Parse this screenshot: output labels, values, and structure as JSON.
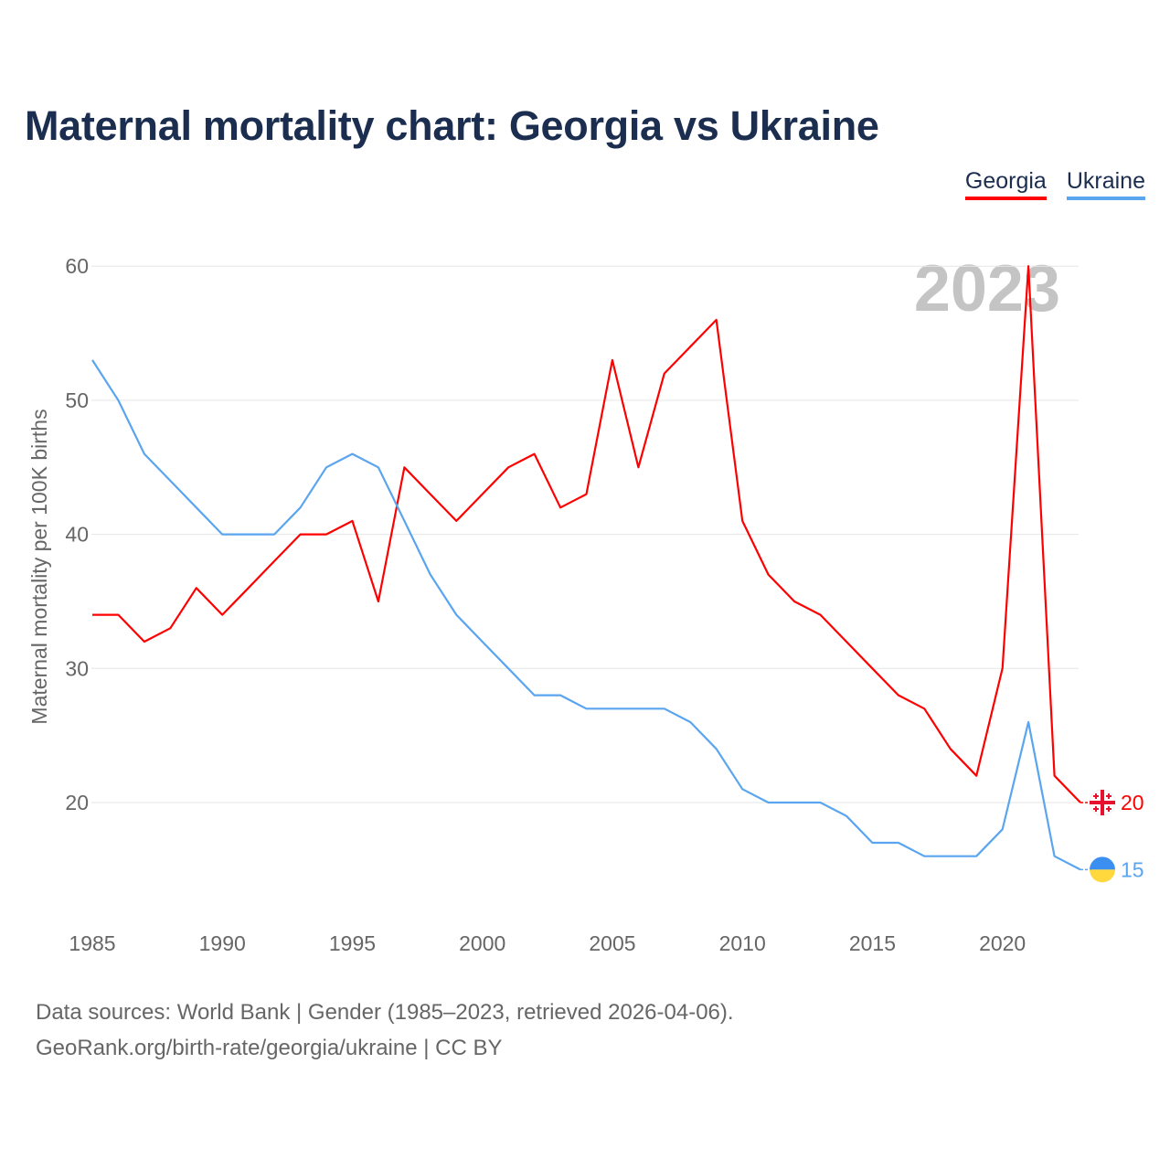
{
  "chart_data": {
    "type": "line",
    "title": "Maternal mortality chart: Georgia vs Ukraine",
    "ylabel": "Maternal mortality per 100K births",
    "xlabel": "",
    "year_watermark": "2023",
    "x": [
      1985,
      1986,
      1987,
      1988,
      1989,
      1990,
      1991,
      1992,
      1993,
      1994,
      1995,
      1996,
      1997,
      1998,
      1999,
      2000,
      2001,
      2002,
      2003,
      2004,
      2005,
      2006,
      2007,
      2008,
      2009,
      2010,
      2011,
      2012,
      2013,
      2014,
      2015,
      2016,
      2017,
      2018,
      2019,
      2020,
      2021,
      2022,
      2023
    ],
    "xlim": [
      1985,
      2023
    ],
    "ylim": [
      12,
      61
    ],
    "xticks": [
      "1985",
      "1990",
      "1995",
      "2000",
      "2005",
      "2010",
      "2015",
      "2020"
    ],
    "yticks": [
      "20",
      "30",
      "40",
      "50",
      "60"
    ],
    "grid": true,
    "legend_position": "top-right",
    "series": [
      {
        "name": "Georgia",
        "color": "#ff0000",
        "end_label": "20",
        "values": [
          34,
          34,
          32,
          33,
          36,
          34,
          36,
          38,
          40,
          40,
          41,
          35,
          45,
          43,
          41,
          43,
          45,
          46,
          42,
          43,
          53,
          45,
          52,
          54,
          56,
          41,
          37,
          35,
          34,
          32,
          30,
          28,
          27,
          24,
          22,
          30,
          60,
          22,
          20
        ]
      },
      {
        "name": "Ukraine",
        "color": "#5aa5f0",
        "end_label": "15",
        "values": [
          53,
          50,
          46,
          44,
          42,
          40,
          40,
          40,
          42,
          45,
          46,
          45,
          41,
          37,
          34,
          32,
          30,
          28,
          28,
          27,
          27,
          27,
          27,
          26,
          24,
          21,
          20,
          20,
          20,
          19,
          17,
          17,
          16,
          16,
          16,
          18,
          26,
          16,
          15
        ]
      }
    ]
  },
  "footer": {
    "line1": "Data sources: World Bank | Gender (1985–2023, retrieved 2026-04-06).",
    "line2": "GeoRank.org/birth-rate/georgia/ukraine | CC BY"
  }
}
